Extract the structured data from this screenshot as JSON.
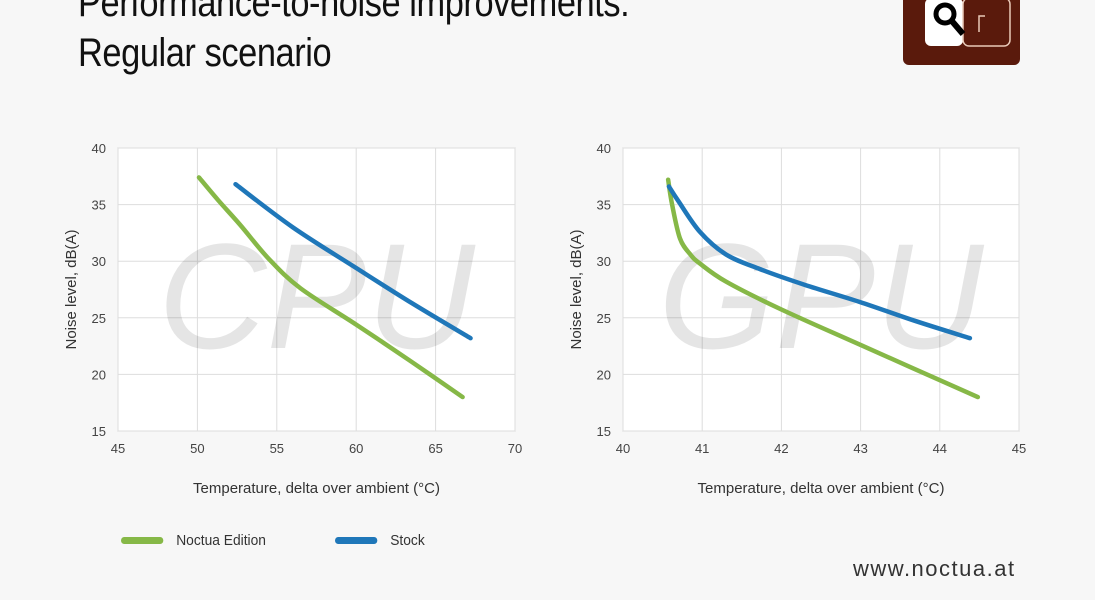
{
  "title_line1": "Performance-to-noise improvements:",
  "title_line2": "Regular scenario",
  "logo_icon": "noctua-logo-icon",
  "colors": {
    "noctua": "#86b847",
    "stock": "#1f77b9",
    "logo": "#5a1a0c"
  },
  "legend": [
    {
      "label": "Noctua Edition",
      "color": "#86b847"
    },
    {
      "label": "Stock",
      "color": "#1f77b9"
    }
  ],
  "url": "www.noctua.at",
  "chart_data": [
    {
      "type": "line",
      "watermark": "CPU",
      "xlabel": "Temperature, delta over ambient (°C)",
      "ylabel": "Noise level, dB(A)",
      "xlim": [
        45,
        70
      ],
      "ylim": [
        15,
        40
      ],
      "xticks": [
        45,
        50,
        55,
        60,
        65,
        70
      ],
      "yticks": [
        15,
        20,
        25,
        30,
        35,
        40
      ],
      "grid": true,
      "series": [
        {
          "name": "Noctua Edition",
          "x": [
            50.1,
            51.3,
            52.7,
            54.5,
            56.5,
            60,
            63.5,
            66.7
          ],
          "y": [
            37.4,
            35.4,
            33.2,
            30.2,
            27.6,
            24.4,
            21.1,
            18.0
          ]
        },
        {
          "name": "Stock",
          "x": [
            52.4,
            56,
            60,
            63.5,
            67.2
          ],
          "y": [
            36.8,
            33.0,
            29.4,
            26.3,
            23.2
          ]
        }
      ]
    },
    {
      "type": "line",
      "watermark": "GPU",
      "xlabel": "Temperature, delta over ambient (°C)",
      "ylabel": "Noise level, dB(A)",
      "xlim": [
        40,
        45
      ],
      "ylim": [
        15,
        40
      ],
      "xticks": [
        40,
        41,
        42,
        43,
        44,
        45
      ],
      "yticks": [
        15,
        20,
        25,
        30,
        35,
        40
      ],
      "grid": true,
      "series": [
        {
          "name": "Noctua Edition",
          "x": [
            40.57,
            40.62,
            40.72,
            40.85,
            40.97,
            41.3,
            41.98,
            43,
            44.48
          ],
          "y": [
            37.2,
            35.0,
            32.0,
            30.6,
            29.8,
            28.2,
            25.8,
            22.6,
            18.0
          ]
        },
        {
          "name": "Stock",
          "x": [
            40.58,
            40.7,
            40.97,
            41.3,
            41.73,
            42.3,
            42.99,
            43.7,
            44.38
          ],
          "y": [
            36.6,
            35.3,
            32.6,
            30.6,
            29.3,
            27.9,
            26.4,
            24.7,
            23.2
          ]
        }
      ]
    }
  ]
}
